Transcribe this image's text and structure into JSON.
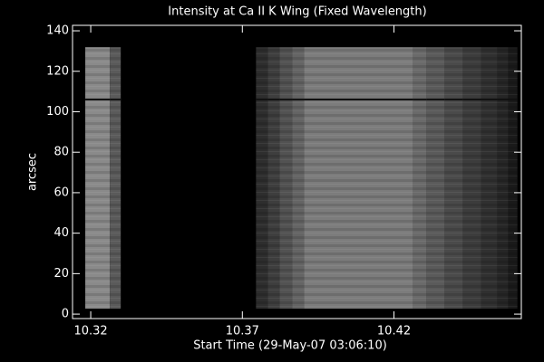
{
  "chart_data": {
    "type": "image",
    "title": "Intensity at Ca II K Wing (Fixed Wavelength)",
    "xlabel": "Start Time (29-May-07 03:06:10)",
    "ylabel": "arcsec",
    "xlim": [
      10.314,
      10.462
    ],
    "xticks": [
      10.32,
      10.37,
      10.42
    ],
    "ylim": [
      -2.2,
      142.7
    ],
    "yticks": [
      0,
      20,
      40,
      60,
      80,
      100,
      120,
      140
    ],
    "image_ylim": [
      2.7,
      131.9
    ],
    "dark_row": 106,
    "columns": [
      {
        "x": [
          10.3182,
          10.3263
        ],
        "color": "#8a8a8a"
      },
      {
        "x": [
          10.3263,
          10.3299
        ],
        "color": "#5a5a5a"
      },
      {
        "x": [
          10.3745,
          10.3784
        ],
        "color": "#2e2e2e"
      },
      {
        "x": [
          10.3784,
          10.3823
        ],
        "color": "#3e3e3e"
      },
      {
        "x": [
          10.3823,
          10.3865
        ],
        "color": "#525252"
      },
      {
        "x": [
          10.3865,
          10.3904
        ],
        "color": "#646464"
      },
      {
        "x": [
          10.3904,
          10.4263
        ],
        "color": "#7c7c7c"
      },
      {
        "x": [
          10.4263,
          10.4308
        ],
        "color": "#6a6a6a"
      },
      {
        "x": [
          10.4308,
          10.4368
        ],
        "color": "#5a5a5a"
      },
      {
        "x": [
          10.4368,
          10.4428
        ],
        "color": "#4a4a4a"
      },
      {
        "x": [
          10.4428,
          10.4487
        ],
        "color": "#3c3c3c"
      },
      {
        "x": [
          10.4487,
          10.4541
        ],
        "color": "#303030"
      },
      {
        "x": [
          10.4541,
          10.4577
        ],
        "color": "#262626"
      },
      {
        "x": [
          10.4577,
          10.4607
        ],
        "color": "#1a1a1a"
      }
    ]
  }
}
